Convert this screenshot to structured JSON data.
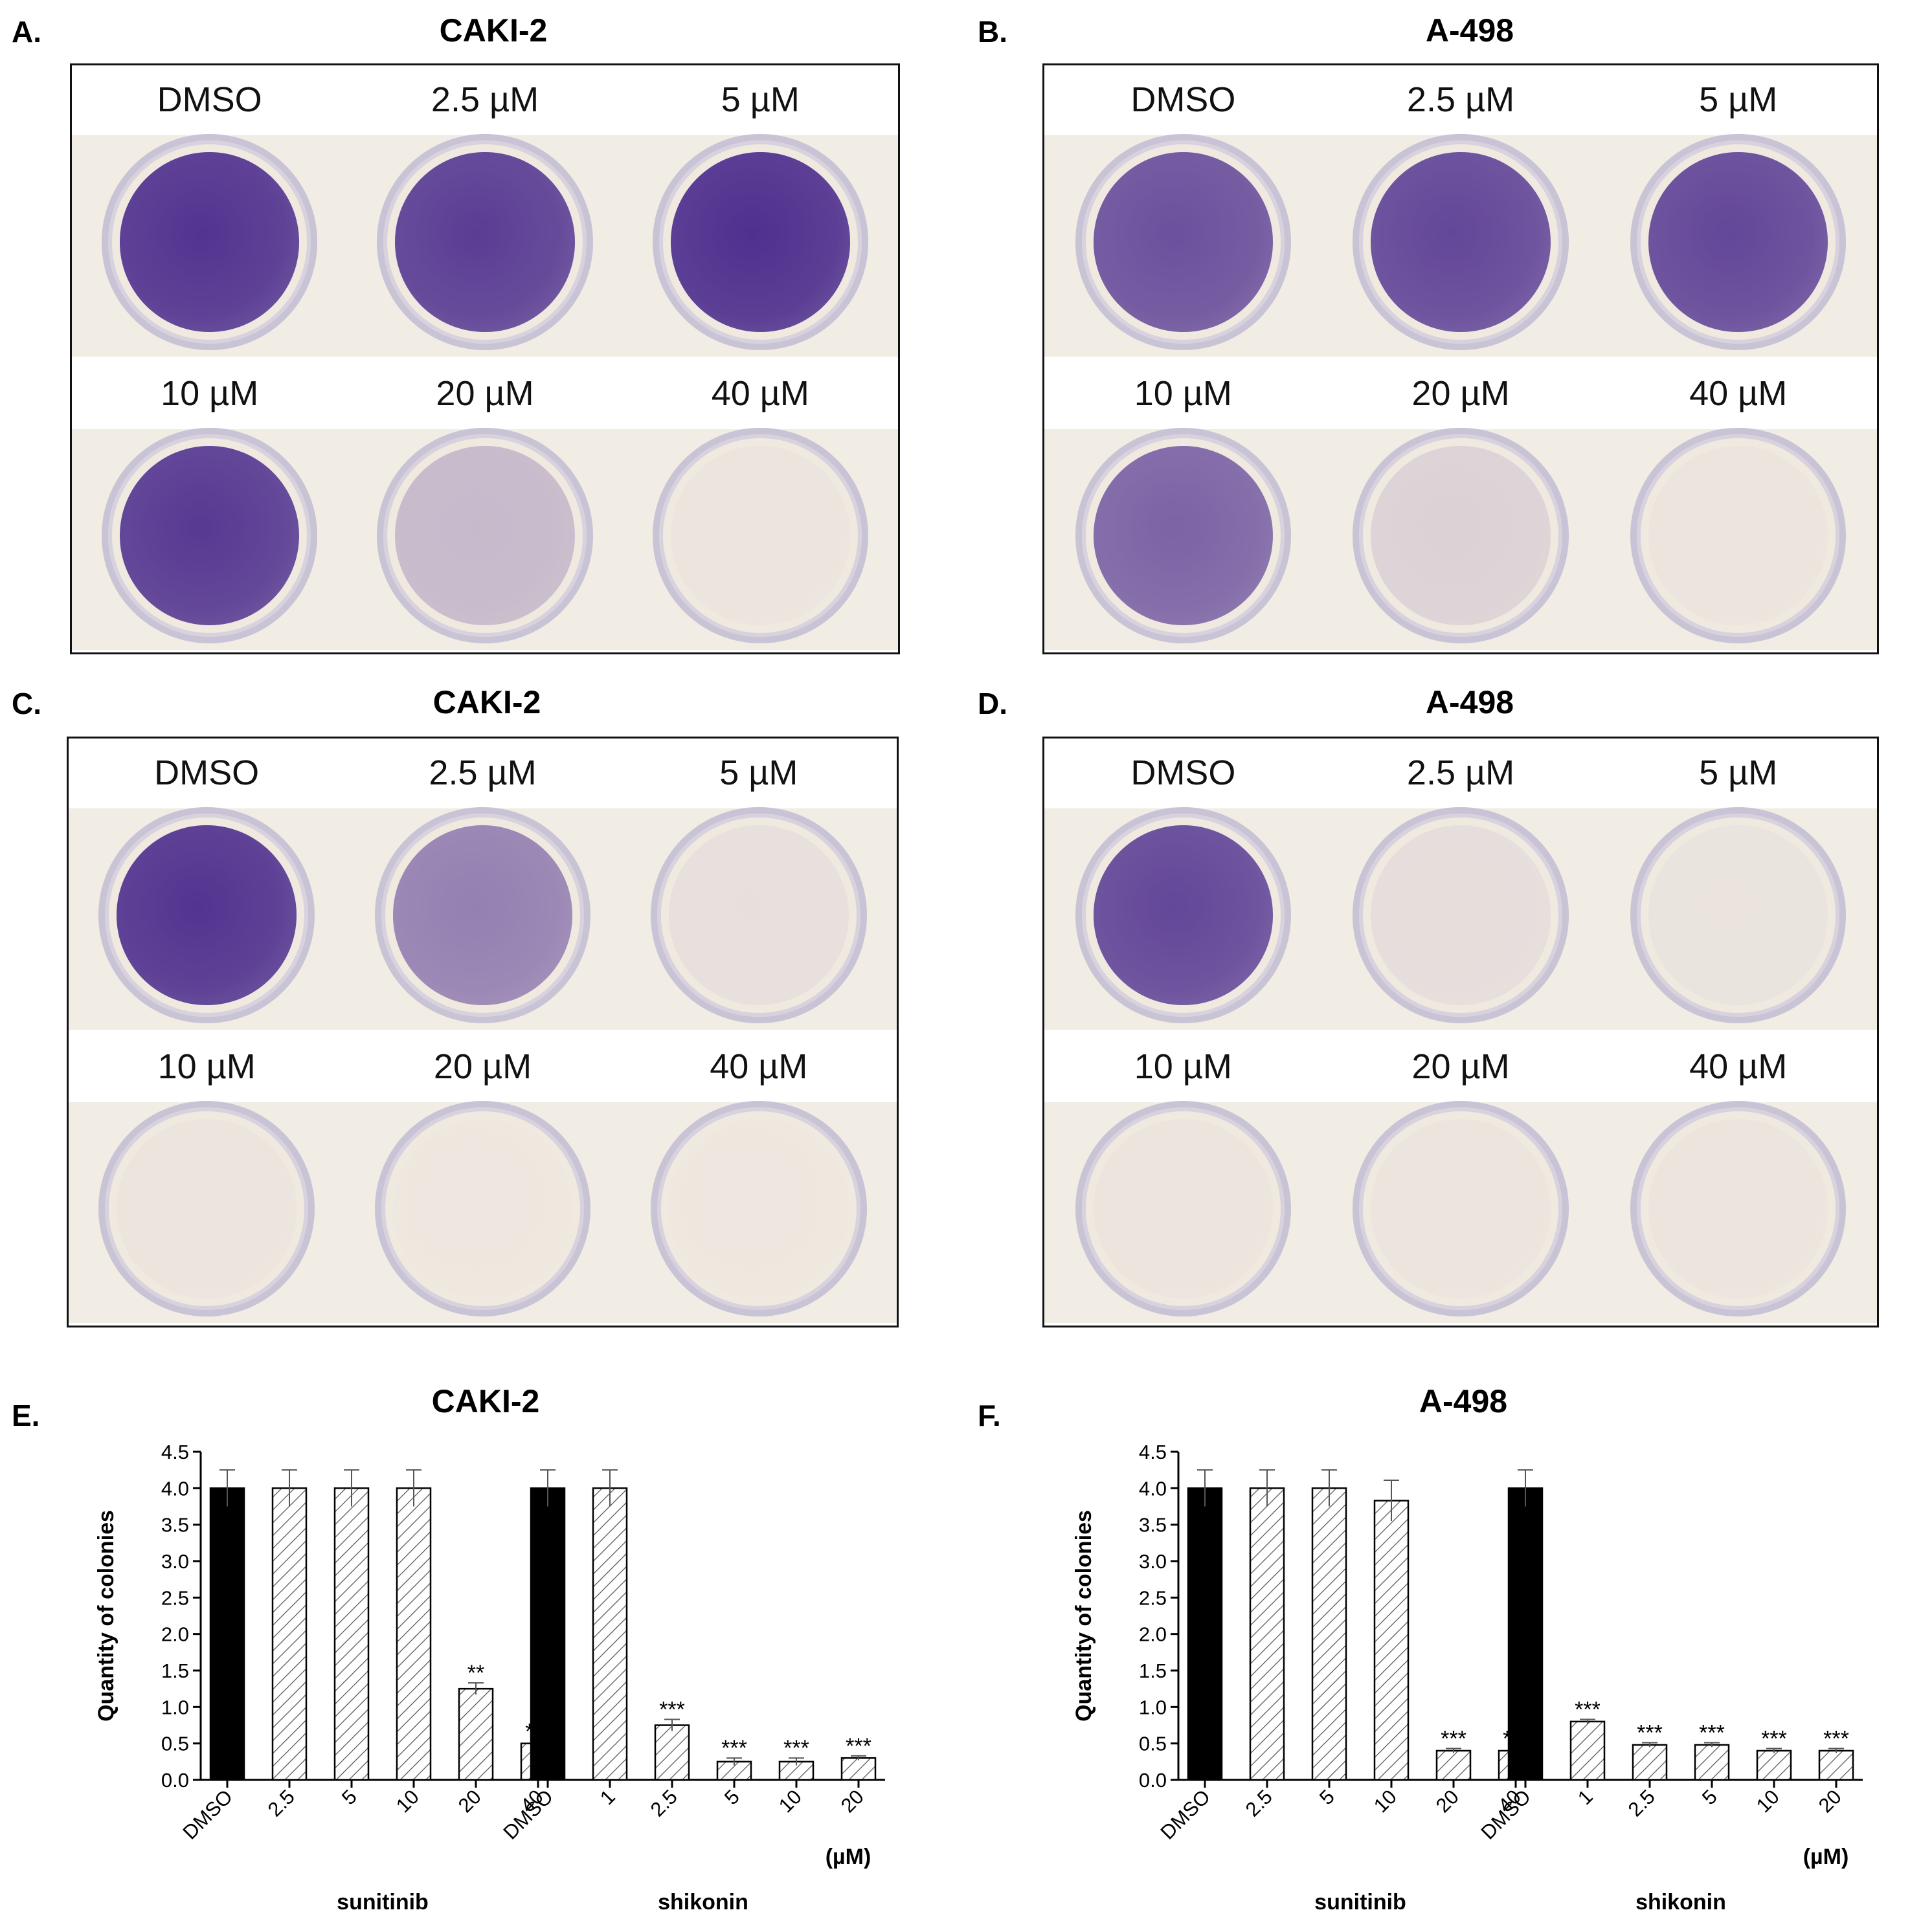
{
  "panels": [
    {
      "letter": "A.",
      "title": "CAKI-2",
      "doses": [
        "DMSO",
        "2.5 µM",
        "5 µM",
        "10 µM",
        "20 µM",
        "40 µM"
      ],
      "stain": [
        0.95,
        0.9,
        0.97,
        0.92,
        0.25,
        0.02
      ]
    },
    {
      "letter": "B.",
      "title": "A-498",
      "doses": [
        "DMSO",
        "2.5 µM",
        "5 µM",
        "10 µM",
        "20 µM",
        "40 µM"
      ],
      "stain": [
        0.8,
        0.85,
        0.85,
        0.7,
        0.12,
        0.02
      ]
    },
    {
      "letter": "C.",
      "title": "CAKI-2",
      "doses": [
        "DMSO",
        "2.5 µM",
        "5 µM",
        "10 µM",
        "20 µM",
        "40 µM"
      ],
      "stain": [
        0.95,
        0.55,
        0.05,
        0.02,
        0.01,
        0.01
      ]
    },
    {
      "letter": "D.",
      "title": "A-498",
      "doses": [
        "DMSO",
        "2.5 µM",
        "5 µM",
        "10 µM",
        "20 µM",
        "40 µM"
      ],
      "stain": [
        0.85,
        0.06,
        0.03,
        0.02,
        0.02,
        0.02
      ]
    },
    {
      "letter": "E.",
      "title": "CAKI-2"
    },
    {
      "letter": "F.",
      "title": "A-498"
    }
  ],
  "colors": {
    "stain": "#4a2a8c",
    "plate_bg": "#f1ece4",
    "black_bar": "#000000"
  },
  "chart_data": [
    {
      "type": "bar",
      "title": "CAKI-2",
      "ylabel": "Quantity of colonies",
      "xunit": "(µM)",
      "ylim": [
        0,
        4.5
      ],
      "yticks": [
        "0.0",
        "0.5",
        "1.0",
        "1.5",
        "2.0",
        "2.5",
        "3.0",
        "3.5",
        "4.0",
        "4.5"
      ],
      "groups": [
        {
          "name": "sunitinib",
          "categories": [
            "DMSO",
            "2.5",
            "5",
            "10",
            "20",
            "40"
          ],
          "values": [
            4.0,
            4.0,
            4.0,
            4.0,
            1.25,
            0.5
          ],
          "errors": [
            0.25,
            0.25,
            0.25,
            0.25,
            0.08,
            0.03
          ],
          "significance": [
            "",
            "",
            "",
            "",
            "**",
            "***"
          ]
        },
        {
          "name": "shikonin",
          "categories": [
            "DMSO",
            "1",
            "2.5",
            "5",
            "10",
            "20"
          ],
          "values": [
            4.0,
            4.0,
            0.75,
            0.25,
            0.25,
            0.3
          ],
          "errors": [
            0.25,
            0.25,
            0.08,
            0.05,
            0.05,
            0.03
          ],
          "significance": [
            "",
            "",
            "***",
            "***",
            "***",
            "***"
          ]
        }
      ]
    },
    {
      "type": "bar",
      "title": "A-498",
      "ylabel": "Quantity of colonies",
      "xunit": "(µM)",
      "ylim": [
        0,
        4.5
      ],
      "yticks": [
        "0.0",
        "0.5",
        "1.0",
        "1.5",
        "2.0",
        "2.5",
        "3.0",
        "3.5",
        "4.0",
        "4.5"
      ],
      "groups": [
        {
          "name": "sunitinib",
          "categories": [
            "DMSO",
            "2.5",
            "5",
            "10",
            "20",
            "40"
          ],
          "values": [
            4.0,
            4.0,
            4.0,
            3.83,
            0.4,
            0.4
          ],
          "errors": [
            0.25,
            0.25,
            0.25,
            0.28,
            0.03,
            0.03
          ],
          "significance": [
            "",
            "",
            "",
            "",
            "***",
            "***"
          ]
        },
        {
          "name": "shikonin",
          "categories": [
            "DMSO",
            "1",
            "2.5",
            "5",
            "10",
            "20"
          ],
          "values": [
            4.0,
            0.8,
            0.48,
            0.48,
            0.4,
            0.4
          ],
          "errors": [
            0.25,
            0.03,
            0.03,
            0.03,
            0.03,
            0.03
          ],
          "significance": [
            "",
            "***",
            "***",
            "***",
            "***",
            "***"
          ]
        }
      ]
    }
  ]
}
